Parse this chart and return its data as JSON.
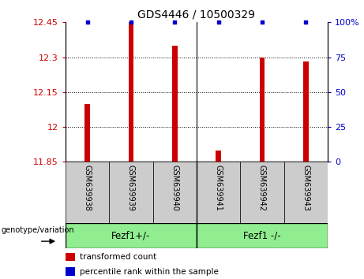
{
  "title": "GDS4446 / 10500329",
  "samples": [
    "GSM639938",
    "GSM639939",
    "GSM639940",
    "GSM639941",
    "GSM639942",
    "GSM639943"
  ],
  "red_values": [
    12.1,
    12.45,
    12.35,
    11.9,
    12.3,
    12.28
  ],
  "blue_values": [
    100,
    100,
    100,
    100,
    100,
    100
  ],
  "ylim_left": [
    11.85,
    12.45
  ],
  "ylim_right": [
    0,
    100
  ],
  "yticks_left": [
    11.85,
    12.0,
    12.15,
    12.3,
    12.45
  ],
  "yticks_right": [
    0,
    25,
    50,
    75,
    100
  ],
  "ytick_labels_left": [
    "11.85",
    "12",
    "12.15",
    "12.3",
    "12.45"
  ],
  "ytick_labels_right": [
    "0",
    "25",
    "50",
    "75",
    "100%"
  ],
  "group1_label": "Fezf1+/-",
  "group2_label": "Fezf1 -/-",
  "group_color": "#90EE90",
  "genotype_label": "genotype/variation",
  "legend_red": "transformed count",
  "legend_blue": "percentile rank within the sample",
  "bar_color": "#CC0000",
  "dot_color": "#0000CC",
  "tick_color_left": "#CC0000",
  "tick_color_right": "#0000CC",
  "bar_width": 0.12,
  "label_box_color": "#CCCCCC",
  "group_separator": 3
}
